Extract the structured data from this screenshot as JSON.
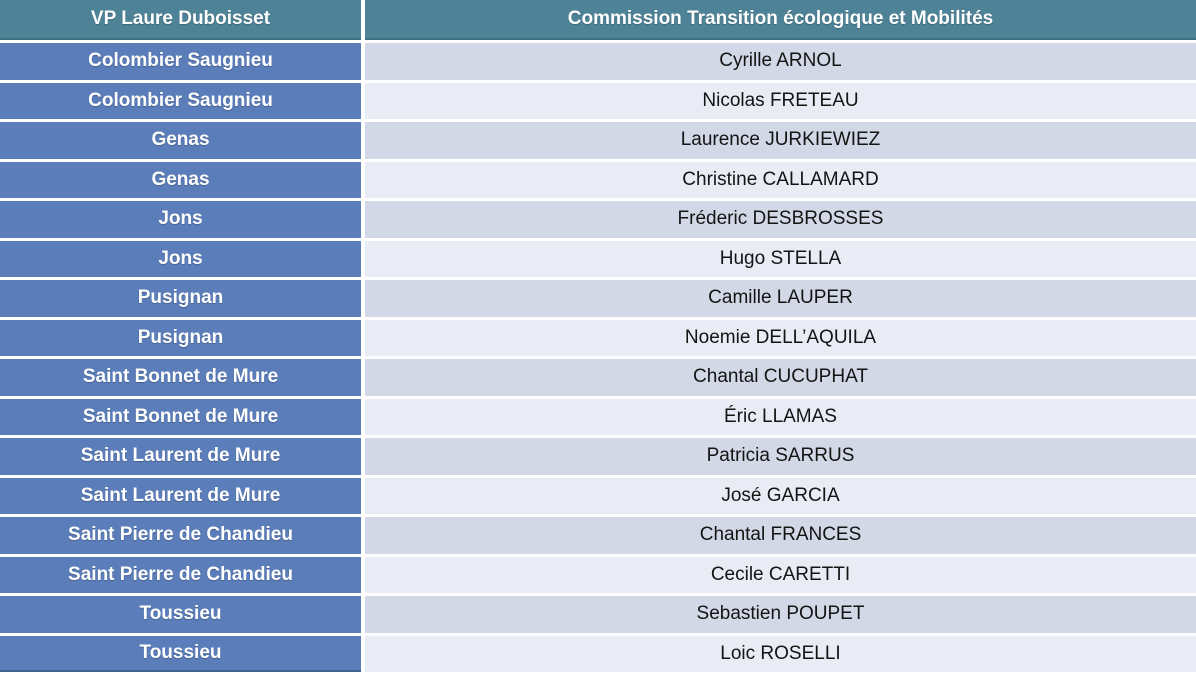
{
  "table": {
    "columns": [
      {
        "header": "VP Laure Duboisset"
      },
      {
        "header": "Commission Transition écologique et Mobilités"
      }
    ],
    "rows": [
      {
        "commune": "Colombier Saugnieu",
        "member": "Cyrille ARNOL"
      },
      {
        "commune": "Colombier Saugnieu",
        "member": "Nicolas FRETEAU"
      },
      {
        "commune": "Genas",
        "member": "Laurence JURKIEWIEZ"
      },
      {
        "commune": "Genas",
        "member": "Christine CALLAMARD"
      },
      {
        "commune": "Jons",
        "member": "Fréderic DESBROSSES"
      },
      {
        "commune": "Jons",
        "member": "Hugo STELLA"
      },
      {
        "commune": "Pusignan",
        "member": "Camille LAUPER"
      },
      {
        "commune": "Pusignan",
        "member": "Noemie DELL’AQUILA"
      },
      {
        "commune": "Saint Bonnet de Mure",
        "member": "Chantal CUCUPHAT"
      },
      {
        "commune": "Saint Bonnet de Mure",
        "member": "Éric LLAMAS"
      },
      {
        "commune": "Saint Laurent de Mure",
        "member": "Patricia SARRUS"
      },
      {
        "commune": "Saint Laurent de Mure",
        "member": "José GARCIA"
      },
      {
        "commune": "Saint Pierre de Chandieu",
        "member": "Chantal FRANCES"
      },
      {
        "commune": "Saint Pierre de Chandieu",
        "member": "Cecile CARETTI"
      },
      {
        "commune": "Toussieu",
        "member": "Sebastien POUPET"
      },
      {
        "commune": "Toussieu",
        "member": "Loic ROSELLI"
      }
    ]
  },
  "colors": {
    "header_bg": "#4e8297",
    "header_border_bottom": "#3f6d81",
    "commune_bg": "#5b7db9",
    "member_row_bg": "#d2d8e6",
    "member_row_alt_bg": "#e9ecf5",
    "table_bottom_border": "#40618f",
    "header_text": "#ffffff",
    "commune_text": "#ffffff",
    "member_text": "#141414",
    "grid_line": "#ffffff"
  }
}
